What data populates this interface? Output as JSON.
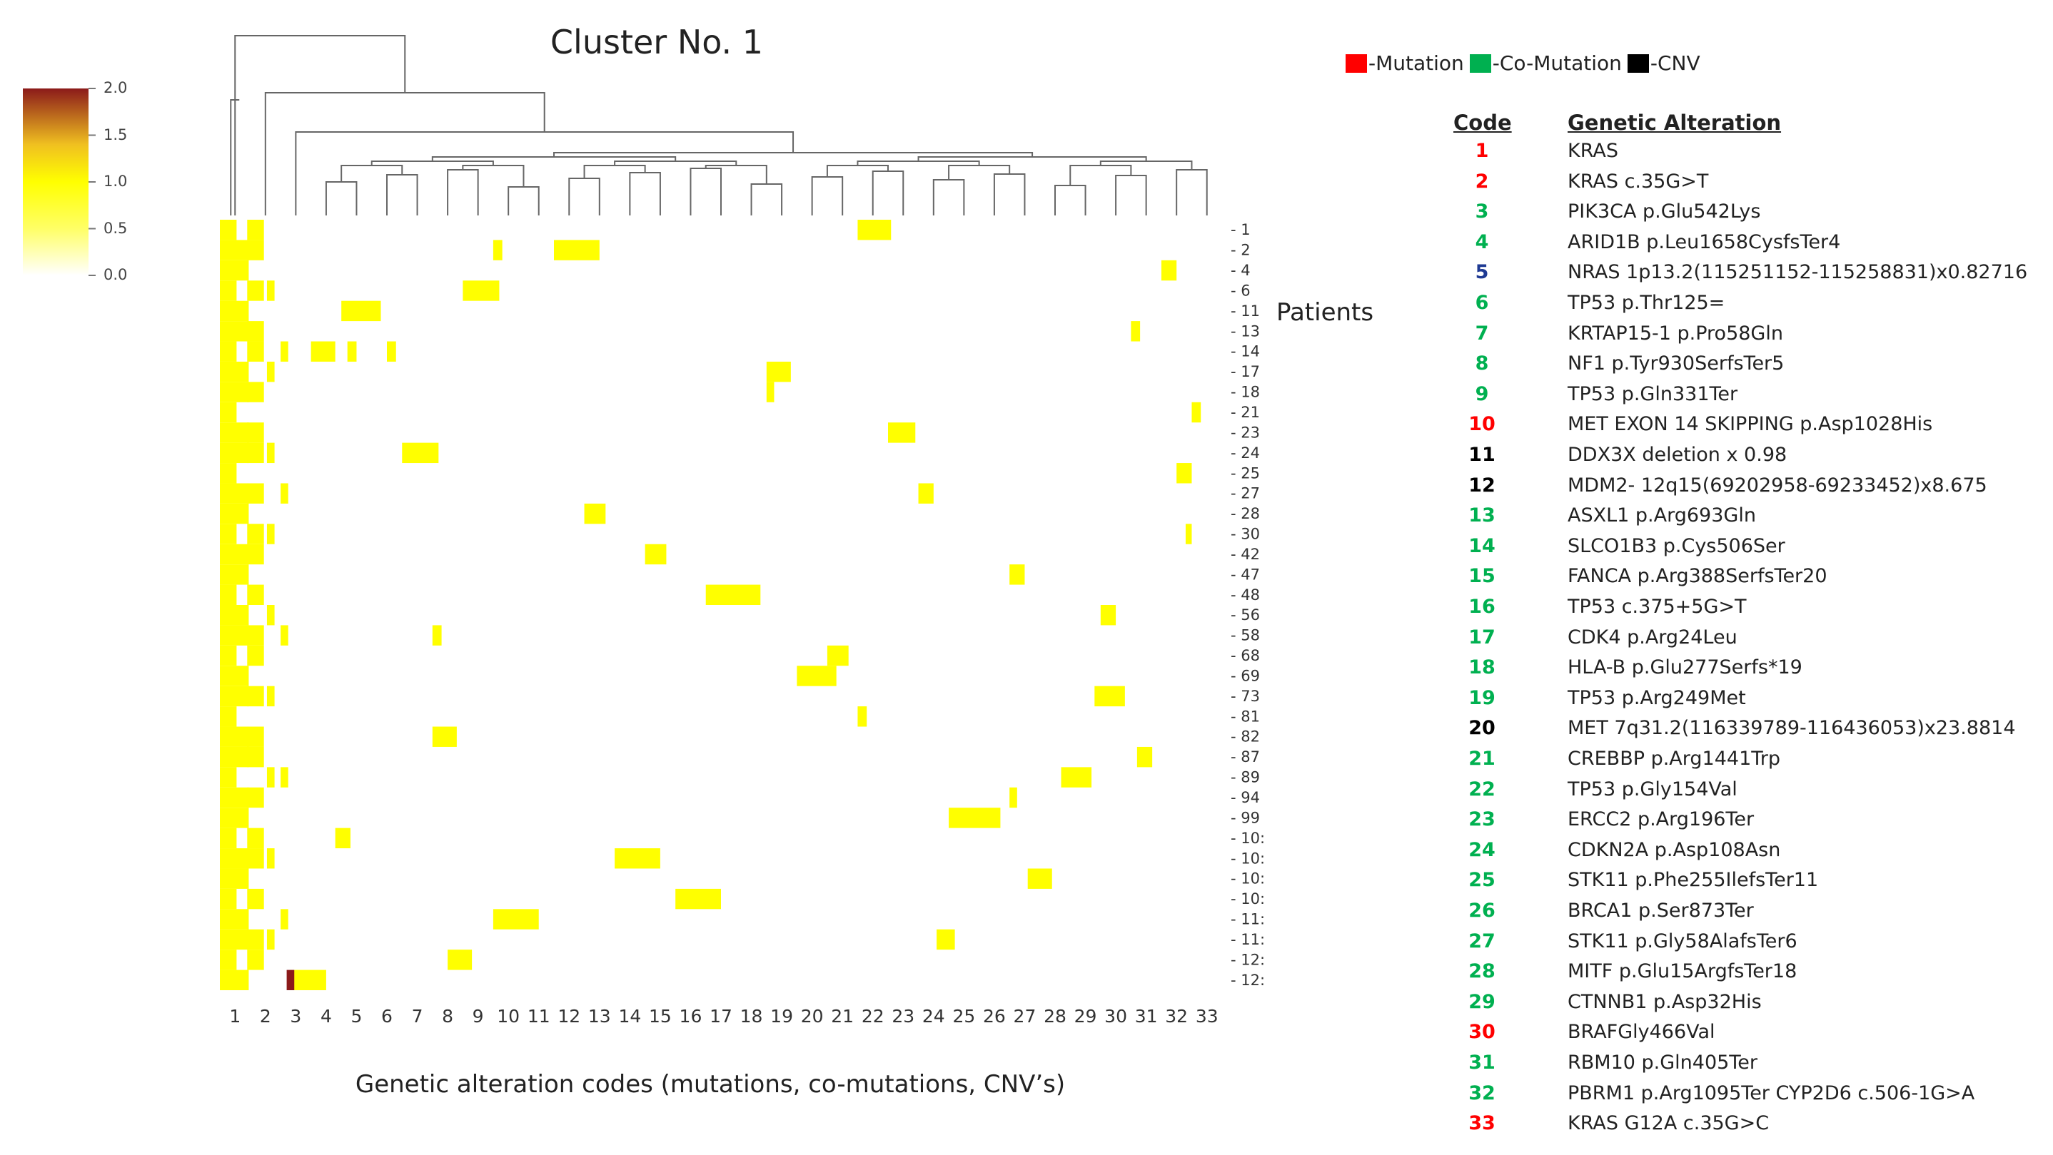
{
  "chart_data": {
    "type": "heatmap",
    "title": "Cluster No. 1",
    "xlabel": "Genetic alteration codes (mutations, co-mutations, CNV’s)",
    "ylabel": "Patients",
    "x_ticks": [
      "1",
      "2",
      "3",
      "4",
      "5",
      "6",
      "7",
      "8",
      "9",
      "10",
      "11",
      "12",
      "13",
      "14",
      "15",
      "16",
      "17",
      "18",
      "19",
      "20",
      "21",
      "22",
      "23",
      "24",
      "25",
      "26",
      "27",
      "28",
      "29",
      "30",
      "31",
      "32",
      "33"
    ],
    "y_ticks": [
      "1",
      "2",
      "4",
      "6",
      "11",
      "13",
      "14",
      "17",
      "18",
      "21",
      "23",
      "24",
      "25",
      "27",
      "28",
      "30",
      "42",
      "47",
      "48",
      "56",
      "58",
      "68",
      "69",
      "73",
      "81",
      "82",
      "87",
      "89",
      "94",
      "99",
      "10:",
      "10:",
      "10:",
      "10:",
      "11:",
      "11:",
      "12:",
      "12:"
    ],
    "colorbar": {
      "ticks": [
        "2.0",
        "1.5",
        "1.0",
        "0.5",
        "0.0"
      ],
      "range": [
        0,
        2
      ],
      "colors": [
        "#ffffff",
        "#ffff00",
        "#8b1a1a"
      ]
    },
    "dendrogram": "top (columns)"
  },
  "legend": [
    {
      "label": "-Mutation",
      "color": "#ff0000"
    },
    {
      "label": "-Co-Mutation",
      "color": "#00b050"
    },
    {
      "label": "-CNV",
      "color": "#000000"
    }
  ],
  "table": {
    "code_header": "Code",
    "alteration_header": "Genetic Alteration",
    "rows": [
      {
        "code": "1",
        "alteration": "KRAS",
        "color": "#ff0000"
      },
      {
        "code": "2",
        "alteration": "KRAS c.35G>T",
        "color": "#ff0000"
      },
      {
        "code": "3",
        "alteration": "PIK3CA p.Glu542Lys",
        "color": "#00b050"
      },
      {
        "code": "4",
        "alteration": "ARID1B p.Leu1658CysfsTer4",
        "color": "#00b050"
      },
      {
        "code": "5",
        "alteration": "NRAS 1p13.2(115251152-115258831)x0.82716",
        "color": "#1f3a93"
      },
      {
        "code": "6",
        "alteration": "TP53 p.Thr125=",
        "color": "#00b050"
      },
      {
        "code": "7",
        "alteration": "KRTAP15-1 p.Pro58Gln",
        "color": "#00b050"
      },
      {
        "code": "8",
        "alteration": "NF1 p.Tyr930SerfsTer5",
        "color": "#00b050"
      },
      {
        "code": "9",
        "alteration": "TP53 p.Gln331Ter",
        "color": "#00b050"
      },
      {
        "code": "10",
        "alteration": "MET EXON 14 SKIPPING p.Asp1028His",
        "color": "#ff0000"
      },
      {
        "code": "11",
        "alteration": "DDX3X deletion x 0.98",
        "color": "#000000"
      },
      {
        "code": "12",
        "alteration": "MDM2- 12q15(69202958-69233452)x8.675",
        "color": "#000000"
      },
      {
        "code": "13",
        "alteration": "ASXL1 p.Arg693Gln",
        "color": "#00b050"
      },
      {
        "code": "14",
        "alteration": "SLCO1B3 p.Cys506Ser",
        "color": "#00b050"
      },
      {
        "code": "15",
        "alteration": "FANCA p.Arg388SerfsTer20",
        "color": "#00b050"
      },
      {
        "code": "16",
        "alteration": "TP53 c.375+5G>T",
        "color": "#00b050"
      },
      {
        "code": "17",
        "alteration": "CDK4 p.Arg24Leu",
        "color": "#00b050"
      },
      {
        "code": "18",
        "alteration": "HLA-B p.Glu277Serfs*19",
        "color": "#00b050"
      },
      {
        "code": "19",
        "alteration": "TP53 p.Arg249Met",
        "color": "#00b050"
      },
      {
        "code": "20",
        "alteration": "MET 7q31.2(116339789-116436053)x23.8814",
        "color": "#000000"
      },
      {
        "code": "21",
        "alteration": "CREBBP p.Arg1441Trp",
        "color": "#00b050"
      },
      {
        "code": "22",
        "alteration": "TP53 p.Gly154Val",
        "color": "#00b050"
      },
      {
        "code": "23",
        "alteration": "ERCC2 p.Arg196Ter",
        "color": "#00b050"
      },
      {
        "code": "24",
        "alteration": "CDKN2A p.Asp108Asn",
        "color": "#00b050"
      },
      {
        "code": "25",
        "alteration": "STK11 p.Phe255IlefsTer11",
        "color": "#00b050"
      },
      {
        "code": "26",
        "alteration": "BRCA1 p.Ser873Ter",
        "color": "#00b050"
      },
      {
        "code": "27",
        "alteration": "STK11 p.Gly58AlafsTer6",
        "color": "#00b050"
      },
      {
        "code": "28",
        "alteration": "MITF p.Glu15ArgfsTer18",
        "color": "#00b050"
      },
      {
        "code": "29",
        "alteration": "CTNNB1 p.Asp32His",
        "color": "#00b050"
      },
      {
        "code": "30",
        "alteration": "BRAFGly466Val",
        "color": "#ff0000"
      },
      {
        "code": "31",
        "alteration": "RBM10 p.Gln405Ter",
        "color": "#00b050"
      },
      {
        "code": "32",
        "alteration": "PBRM1 p.Arg1095Ter CYP2D6 c.506-1G>A",
        "color": "#00b050"
      },
      {
        "code": "33",
        "alteration": "KRAS G12A c.35G>C",
        "color": "#ff0000"
      }
    ]
  }
}
